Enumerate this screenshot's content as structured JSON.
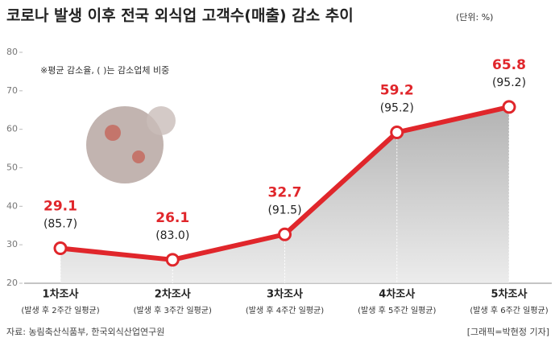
{
  "chart_data": {
    "type": "line",
    "title": "코로나 발생 이후 전국 외식업 고객수(매출) 감소 추이",
    "unit": "(단위: %)",
    "note": "※평균 감소율, ( )는 감소업체 비중",
    "categories": [
      "1차조사",
      "2차조사",
      "3차조사",
      "4차조사",
      "5차조사"
    ],
    "subcategories": [
      "(발생 후 2주간 일평균)",
      "(발생 후 3주간 일평균)",
      "(발생 후 4주간 일평균)",
      "(발생 후 5주간 일평균)",
      "(발생 후 6주간 일평균)"
    ],
    "values": [
      29.1,
      26.1,
      32.7,
      59.2,
      65.8
    ],
    "color": "#e0262b",
    "annotations": [
      {
        "value": 85.7,
        "label": "(85.7)"
      },
      {
        "value": 83.0,
        "label": "(83.0)"
      },
      {
        "value": 91.5,
        "label": "(91.5)"
      },
      {
        "value": 95.2,
        "label": "(95.2)"
      },
      {
        "value": 95.2,
        "label": "(95.2)"
      }
    ],
    "ylim": [
      20,
      80
    ],
    "yticks": [
      20,
      30,
      40,
      50,
      60,
      70,
      80
    ],
    "source": "자료: 농림축산식품부, 한국외식산업연구원",
    "credit": "[그래픽=박현정 기자]"
  }
}
